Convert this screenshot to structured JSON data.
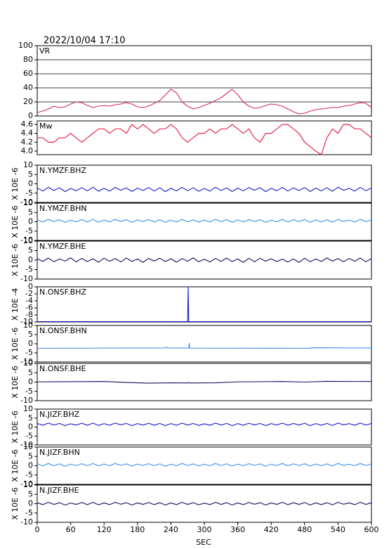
{
  "chart_data": [
    {
      "type": "line",
      "title": "2022/10/04 17:10",
      "label": "VR",
      "color": "#d42a5a",
      "grid": true,
      "x": [
        0,
        10,
        20,
        30,
        40,
        50,
        60,
        70,
        80,
        90,
        100,
        110,
        120,
        130,
        140,
        150,
        160,
        170,
        180,
        190,
        200,
        210,
        220,
        230,
        240,
        250,
        260,
        270,
        280,
        290,
        300,
        310,
        320,
        330,
        340,
        350,
        360,
        370,
        380,
        390,
        400,
        410,
        420,
        430,
        440,
        450,
        460,
        470,
        480,
        490,
        500,
        510,
        520,
        530,
        540,
        550,
        560,
        570,
        580,
        590,
        600
      ],
      "values": [
        5,
        7,
        10,
        14,
        12,
        13,
        17,
        20,
        19,
        15,
        12,
        14,
        15,
        14,
        16,
        17,
        19,
        17,
        13,
        12,
        14,
        18,
        22,
        30,
        38,
        33,
        20,
        14,
        10,
        12,
        15,
        18,
        22,
        26,
        32,
        38,
        30,
        20,
        14,
        11,
        12,
        15,
        17,
        16,
        14,
        10,
        6,
        3,
        4,
        7,
        9,
        10,
        11,
        12,
        12,
        14,
        15,
        17,
        19,
        18,
        12
      ],
      "xlim": [
        0,
        600
      ],
      "ylim": [
        0,
        100
      ],
      "yticks": [
        0,
        20,
        40,
        60,
        80,
        100
      ]
    },
    {
      "type": "line",
      "label": "Mw",
      "color": "#e0103a",
      "grid": false,
      "x": [
        0,
        10,
        20,
        30,
        40,
        50,
        60,
        70,
        80,
        90,
        100,
        110,
        120,
        130,
        140,
        150,
        160,
        170,
        180,
        190,
        200,
        210,
        220,
        230,
        240,
        250,
        260,
        270,
        280,
        290,
        300,
        310,
        320,
        330,
        340,
        350,
        360,
        370,
        380,
        390,
        400,
        410,
        420,
        430,
        440,
        450,
        460,
        470,
        480,
        490,
        500,
        510,
        520,
        530,
        540,
        550,
        560,
        570,
        580,
        590,
        600
      ],
      "values": [
        4.3,
        4.3,
        4.2,
        4.2,
        4.3,
        4.3,
        4.4,
        4.3,
        4.2,
        4.3,
        4.4,
        4.5,
        4.5,
        4.4,
        4.5,
        4.5,
        4.4,
        4.6,
        4.5,
        4.6,
        4.5,
        4.4,
        4.5,
        4.5,
        4.6,
        4.5,
        4.3,
        4.2,
        4.3,
        4.4,
        4.4,
        4.5,
        4.4,
        4.5,
        4.5,
        4.6,
        4.5,
        4.4,
        4.5,
        4.3,
        4.2,
        4.4,
        4.4,
        4.5,
        4.6,
        4.6,
        4.5,
        4.4,
        4.2,
        4.1,
        4.0,
        3.92,
        4.3,
        4.5,
        4.4,
        4.6,
        4.6,
        4.5,
        4.5,
        4.4,
        4.3
      ],
      "xlim": [
        0,
        600
      ],
      "ylim": [
        3.92,
        4.68
      ],
      "yticks": [
        {
          "value": 4,
          "label": "4.0"
        },
        4.2,
        4.4,
        4.6
      ]
    },
    {
      "type": "line",
      "label": "N.YMZF.BHZ",
      "ylabel": "X 10E -6",
      "color": "#1a1acc",
      "grid": false,
      "x": [
        0,
        10,
        20,
        30,
        40,
        50,
        60,
        70,
        80,
        90,
        100,
        110,
        120,
        130,
        140,
        150,
        160,
        170,
        180,
        190,
        200,
        210,
        220,
        230,
        240,
        250,
        260,
        270,
        280,
        290,
        300,
        310,
        320,
        330,
        340,
        350,
        360,
        370,
        380,
        390,
        400,
        410,
        420,
        430,
        440,
        450,
        460,
        470,
        480,
        490,
        500,
        510,
        520,
        530,
        540,
        550,
        560,
        570,
        580,
        590,
        600
      ],
      "values": [
        -2.2,
        -3.9,
        -1.9,
        -3.6,
        -2.1,
        -4.2,
        -2.5,
        -3.7,
        -2.0,
        -3.8,
        -1.8,
        -4.0,
        -2.4,
        -3.9,
        -1.9,
        -3.5,
        -2.2,
        -4.1,
        -2.3,
        -3.6,
        -2.0,
        -3.9,
        -2.1,
        -4.2,
        -2.4,
        -3.8,
        -1.9,
        -3.7,
        -2.1,
        -4.0,
        -2.5,
        -3.9,
        -1.8,
        -3.6,
        -2.2,
        -4.1,
        -2.3,
        -3.8,
        -2.0,
        -3.5,
        -2.1,
        -4.2,
        -2.4,
        -3.7,
        -1.9,
        -3.9,
        -2.2,
        -3.6,
        -2.0,
        -4.1,
        -2.3,
        -3.8,
        -2.1,
        -4.0,
        -1.8,
        -3.5,
        -2.4,
        -3.9,
        -1.9,
        -3.7,
        -2.2
      ],
      "xlim": [
        0,
        600
      ],
      "ylim": [
        -10,
        10
      ],
      "yticks": [
        -10,
        -5,
        0,
        5,
        10
      ]
    },
    {
      "type": "line",
      "label": "N.YMZF.BHN",
      "ylabel": "X 10E -6",
      "color": "#3a8ee6",
      "grid": false,
      "x": [
        0,
        10,
        20,
        30,
        40,
        50,
        60,
        70,
        80,
        90,
        100,
        110,
        120,
        130,
        140,
        150,
        160,
        170,
        180,
        190,
        200,
        210,
        220,
        230,
        240,
        250,
        260,
        270,
        280,
        290,
        300,
        310,
        320,
        330,
        340,
        350,
        360,
        370,
        380,
        390,
        400,
        410,
        420,
        430,
        440,
        450,
        460,
        470,
        480,
        490,
        500,
        510,
        520,
        530,
        540,
        550,
        560,
        570,
        580,
        590,
        600
      ],
      "values": [
        1.1,
        -0.1,
        1.3,
        0.1,
        1.1,
        -0.3,
        0.9,
        0.0,
        1.2,
        -0.1,
        1.3,
        -0.2,
        0.9,
        -0.1,
        1.3,
        0.2,
        1.1,
        -0.3,
        1.0,
        0.1,
        1.2,
        -0.1,
        1.1,
        -0.3,
        0.9,
        -0.1,
        1.3,
        0.0,
        1.1,
        -0.2,
        0.9,
        -0.1,
        1.3,
        0.1,
        1.1,
        -0.3,
        1.0,
        -0.1,
        1.2,
        0.2,
        1.1,
        -0.3,
        0.9,
        0.0,
        1.3,
        -0.1,
        1.1,
        0.1,
        1.2,
        -0.3,
        1.0,
        -0.1,
        1.1,
        -0.2,
        1.3,
        0.2,
        0.9,
        -0.1,
        1.3,
        0.0,
        1.1
      ],
      "xlim": [
        0,
        600
      ],
      "ylim": [
        -10,
        10
      ],
      "yticks": [
        -10,
        -5,
        0,
        5,
        10
      ]
    },
    {
      "type": "line",
      "label": "N.YMZF.BHE",
      "ylabel": "X 10E -6",
      "color": "#101060",
      "grid": false,
      "x": [
        0,
        10,
        20,
        30,
        40,
        50,
        60,
        70,
        80,
        90,
        100,
        110,
        120,
        130,
        140,
        150,
        160,
        170,
        180,
        190,
        200,
        210,
        220,
        230,
        240,
        250,
        260,
        270,
        280,
        290,
        300,
        310,
        320,
        330,
        340,
        350,
        360,
        370,
        380,
        390,
        400,
        410,
        420,
        430,
        440,
        450,
        460,
        470,
        480,
        490,
        500,
        510,
        520,
        530,
        540,
        550,
        560,
        570,
        580,
        590,
        600
      ],
      "values": [
        0.8,
        -0.7,
        1.1,
        -0.9,
        0.6,
        -0.5,
        1.2,
        -1.0,
        0.9,
        -0.8,
        0.7,
        -1.1,
        1.0,
        -0.6,
        0.8,
        -0.9,
        1.1,
        -0.7,
        0.6,
        -1.2,
        0.9,
        -0.5,
        1.0,
        -0.8,
        0.7,
        -1.1,
        0.8,
        -0.6,
        1.2,
        -0.9,
        0.5,
        -1.0,
        0.9,
        -0.7,
        1.1,
        -0.8,
        0.6,
        -1.2,
        0.9,
        -0.9,
        1.0,
        -0.6,
        0.7,
        -0.8,
        0.5,
        -1.0,
        0.6,
        -1.2,
        1.0,
        -0.9,
        0.6,
        -0.7,
        1.1,
        -0.5,
        0.8,
        -0.9,
        0.9,
        -0.6,
        1.1,
        -0.9,
        0.8
      ],
      "xlim": [
        0,
        600
      ],
      "ylim": [
        -10,
        10
      ],
      "yticks": [
        -10,
        -5,
        0,
        5,
        10
      ]
    },
    {
      "type": "line",
      "label": "N.ONSF.BHZ",
      "ylabel": "X 10E -4",
      "color": "#1a1acc",
      "grid": false,
      "x": [
        0,
        270,
        271,
        272,
        600
      ],
      "values": [
        -9.9,
        -9.9,
        0,
        -9.9,
        -9.9
      ],
      "xlim": [
        0,
        600
      ],
      "ylim": [
        -10,
        0
      ],
      "yticks": [
        -10,
        -8,
        -6,
        -4,
        -2,
        0
      ]
    },
    {
      "type": "line",
      "label": "N.ONSF.BHN",
      "ylabel": "X 10E -6",
      "color": "#3a8ee6",
      "grid": false,
      "x": [
        0,
        100,
        230,
        232,
        234,
        272,
        273,
        274,
        276,
        300,
        490,
        492,
        600
      ],
      "values": [
        -2.5,
        -2.4,
        -2.3,
        -1.8,
        -2.3,
        -2.4,
        0.3,
        -2.4,
        -2.4,
        -2.4,
        -2.5,
        -2.2,
        -2.3
      ],
      "xlim": [
        0,
        600
      ],
      "ylim": [
        -10,
        10
      ],
      "yticks": [
        -10,
        -5,
        0,
        5,
        10
      ]
    },
    {
      "type": "line",
      "label": "N.ONSF.BHE",
      "ylabel": "X 10E -6",
      "color": "#101060",
      "grid": false,
      "x": [
        0,
        60,
        120,
        160,
        200,
        240,
        270,
        272,
        274,
        320,
        360,
        440,
        480,
        520,
        600
      ],
      "values": [
        0.1,
        0.2,
        0.3,
        -0.2,
        -0.6,
        -0.4,
        -0.5,
        -0.2,
        -0.5,
        -0.4,
        0.1,
        0.3,
        0.0,
        0.4,
        0.3
      ],
      "xlim": [
        0,
        600
      ],
      "ylim": [
        -10,
        10
      ],
      "yticks": [
        -10,
        -5,
        0,
        5,
        10
      ]
    },
    {
      "type": "line",
      "label": "N.JIZF.BHZ",
      "ylabel": "X 10E -6",
      "color": "#1a1acc",
      "grid": false,
      "x": [
        0,
        10,
        20,
        30,
        40,
        50,
        60,
        70,
        80,
        90,
        100,
        110,
        120,
        130,
        140,
        150,
        160,
        170,
        180,
        190,
        200,
        210,
        220,
        230,
        240,
        250,
        260,
        270,
        280,
        290,
        300,
        310,
        320,
        330,
        340,
        350,
        360,
        370,
        380,
        390,
        400,
        410,
        420,
        430,
        440,
        450,
        460,
        470,
        480,
        490,
        500,
        510,
        520,
        530,
        540,
        550,
        560,
        570,
        580,
        590,
        600
      ],
      "values": [
        2.0,
        1.0,
        2.2,
        1.1,
        2.0,
        0.8,
        1.8,
        1.1,
        2.1,
        1.0,
        2.2,
        0.9,
        1.9,
        1.0,
        2.2,
        1.2,
        2.0,
        0.8,
        1.9,
        1.1,
        2.1,
        1.0,
        2.0,
        0.8,
        1.9,
        1.0,
        2.2,
        1.1,
        2.0,
        0.9,
        1.8,
        1.0,
        2.2,
        1.1,
        2.0,
        0.8,
        1.9,
        1.0,
        2.1,
        1.2,
        2.0,
        0.8,
        1.9,
        1.1,
        2.2,
        1.0,
        2.0,
        1.1,
        2.1,
        0.8,
        1.9,
        1.0,
        2.0,
        0.9,
        2.2,
        1.2,
        1.9,
        1.0,
        2.2,
        1.1,
        2.0
      ],
      "xlim": [
        0,
        600
      ],
      "ylim": [
        -10,
        10
      ],
      "yticks": [
        -10,
        -5,
        0,
        5,
        10
      ]
    },
    {
      "type": "line",
      "label": "N.JIZF.BHN",
      "ylabel": "X 10E -6",
      "color": "#3a8ee6",
      "grid": false,
      "x": [
        0,
        10,
        20,
        30,
        40,
        50,
        60,
        70,
        80,
        90,
        100,
        110,
        120,
        130,
        140,
        150,
        160,
        170,
        180,
        190,
        200,
        210,
        220,
        230,
        240,
        250,
        260,
        270,
        280,
        290,
        300,
        310,
        320,
        330,
        340,
        350,
        360,
        370,
        380,
        390,
        400,
        410,
        420,
        430,
        440,
        450,
        460,
        470,
        480,
        490,
        500,
        510,
        520,
        530,
        540,
        550,
        560,
        570,
        580,
        590,
        600
      ],
      "values": [
        1.0,
        -0.1,
        1.2,
        0.0,
        1.0,
        -0.3,
        0.8,
        0.1,
        1.1,
        0.0,
        1.2,
        -0.1,
        0.9,
        0.0,
        1.2,
        0.2,
        1.0,
        -0.2,
        0.9,
        0.1,
        1.1,
        0.0,
        1.0,
        -0.3,
        0.8,
        0.0,
        1.2,
        0.1,
        1.0,
        -0.1,
        0.8,
        0.0,
        1.2,
        0.1,
        1.0,
        -0.2,
        0.9,
        0.0,
        1.1,
        0.2,
        1.0,
        -0.3,
        0.8,
        0.1,
        1.2,
        0.0,
        1.0,
        0.1,
        1.1,
        -0.2,
        0.9,
        0.0,
        1.0,
        -0.1,
        1.2,
        0.2,
        0.8,
        0.0,
        1.2,
        0.1,
        1.0
      ],
      "xlim": [
        0,
        600
      ],
      "ylim": [
        -10,
        10
      ],
      "yticks": [
        -10,
        -5,
        0,
        5,
        10
      ]
    },
    {
      "type": "line",
      "label": "N.JIZF.BHE",
      "ylabel": "X 10E -6",
      "color": "#101060",
      "grid": false,
      "x": [
        0,
        10,
        20,
        30,
        40,
        50,
        60,
        70,
        80,
        90,
        100,
        110,
        120,
        130,
        140,
        150,
        160,
        170,
        180,
        190,
        200,
        210,
        220,
        230,
        240,
        250,
        260,
        270,
        280,
        290,
        300,
        310,
        320,
        330,
        340,
        350,
        360,
        370,
        380,
        390,
        400,
        410,
        420,
        430,
        440,
        450,
        460,
        470,
        480,
        490,
        500,
        510,
        520,
        530,
        540,
        550,
        560,
        570,
        580,
        590,
        600
      ],
      "values": [
        0.5,
        -0.5,
        0.7,
        -0.4,
        0.5,
        -0.7,
        0.3,
        -0.4,
        0.6,
        -0.5,
        0.7,
        -0.6,
        0.4,
        -0.5,
        0.7,
        -0.3,
        0.5,
        -0.7,
        0.4,
        -0.4,
        0.6,
        -0.5,
        0.5,
        -0.7,
        0.4,
        -0.5,
        0.7,
        -0.4,
        0.5,
        -0.6,
        0.3,
        -0.5,
        0.7,
        -0.4,
        0.5,
        -0.7,
        0.4,
        -0.5,
        0.6,
        -0.3,
        0.5,
        -0.7,
        0.4,
        -0.4,
        0.7,
        -0.5,
        0.5,
        -0.4,
        0.6,
        -0.7,
        0.4,
        -0.5,
        0.5,
        -0.6,
        0.7,
        -0.3,
        0.4,
        -0.5,
        0.7,
        -0.4,
        0.5
      ],
      "xlim": [
        0,
        600
      ],
      "ylim": [
        -10,
        10
      ],
      "yticks": [
        -10,
        -5,
        0,
        5,
        10
      ],
      "xticks": [
        0,
        60,
        120,
        180,
        240,
        300,
        360,
        420,
        480,
        540,
        600
      ],
      "xlabel": "SEC"
    }
  ]
}
